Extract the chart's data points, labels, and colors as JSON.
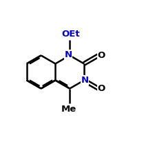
{
  "bg_color": "#ffffff",
  "bond_color": "#000000",
  "N_color": "#0000bb",
  "O_color": "#000000",
  "bond_lw": 1.8,
  "fig_size": [
    2.09,
    2.09
  ],
  "dpi": 100,
  "ring_scale": 0.115,
  "bcx": 0.285,
  "bcy": 0.5,
  "OEt_label": "OEt",
  "N_label": "N",
  "O_label": "O",
  "Me_label": "Me",
  "font_size": 9.5
}
